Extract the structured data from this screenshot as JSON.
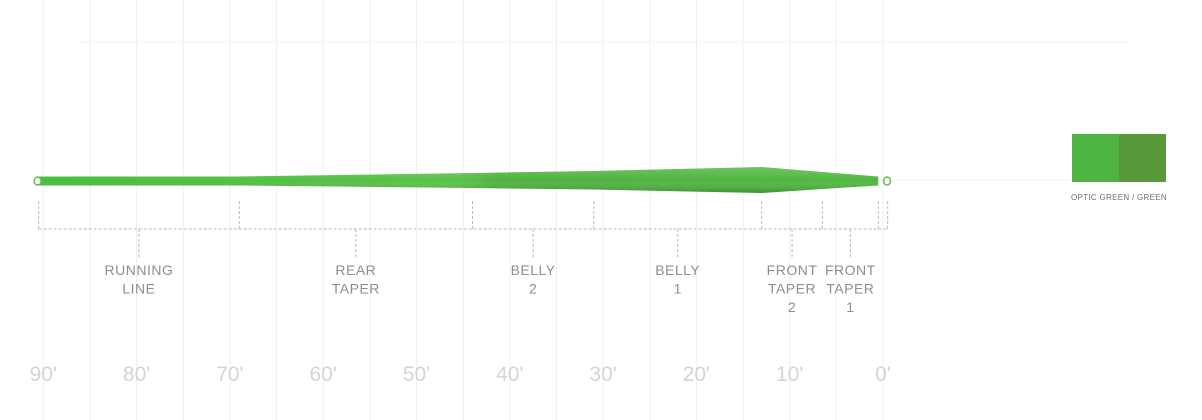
{
  "line_profile": {
    "axis_unit": "feet",
    "axis_ticks": [
      {
        "value": 90,
        "label": "90'"
      },
      {
        "value": 80,
        "label": "80'"
      },
      {
        "value": 70,
        "label": "70'"
      },
      {
        "value": 60,
        "label": "60'"
      },
      {
        "value": 50,
        "label": "50'"
      },
      {
        "value": 40,
        "label": "40'"
      },
      {
        "value": 30,
        "label": "30'"
      },
      {
        "value": 20,
        "label": "20'"
      },
      {
        "value": 10,
        "label": "10'"
      },
      {
        "value": 0,
        "label": "0'"
      }
    ],
    "segments": [
      {
        "id": "running-line",
        "lines": [
          "RUNNING",
          "LINE"
        ],
        "from_ft": 90.5,
        "to_ft": 69.0
      },
      {
        "id": "rear-taper",
        "lines": [
          "REAR",
          "TAPER"
        ],
        "from_ft": 69.0,
        "to_ft": 44.0
      },
      {
        "id": "belly-2",
        "lines": [
          "BELLY",
          "2"
        ],
        "from_ft": 44.0,
        "to_ft": 31.0
      },
      {
        "id": "belly-1",
        "lines": [
          "BELLY",
          "1"
        ],
        "from_ft": 31.0,
        "to_ft": 13.0
      },
      {
        "id": "front-taper-2",
        "lines": [
          "FRONT",
          "TAPER",
          "2"
        ],
        "from_ft": 13.0,
        "to_ft": 6.5
      },
      {
        "id": "front-taper-1",
        "lines": [
          "FRONT",
          "TAPER",
          "1"
        ],
        "from_ft": 6.5,
        "to_ft": 0.5
      },
      {
        "id": "tip",
        "lines": [],
        "from_ft": 0.5,
        "to_ft": -0.5
      }
    ],
    "colors": {
      "running_line": "#46b83c",
      "head": "#4fb83f",
      "head_shadow": "#3e9a33",
      "grid": "#efefef",
      "bracket": "#b8b8b8"
    }
  },
  "legend": {
    "label": "OPTIC GREEN / GREEN",
    "swatches": [
      {
        "name": "optic-green",
        "color": "#4db43f"
      },
      {
        "name": "green",
        "color": "#58973a"
      }
    ]
  }
}
